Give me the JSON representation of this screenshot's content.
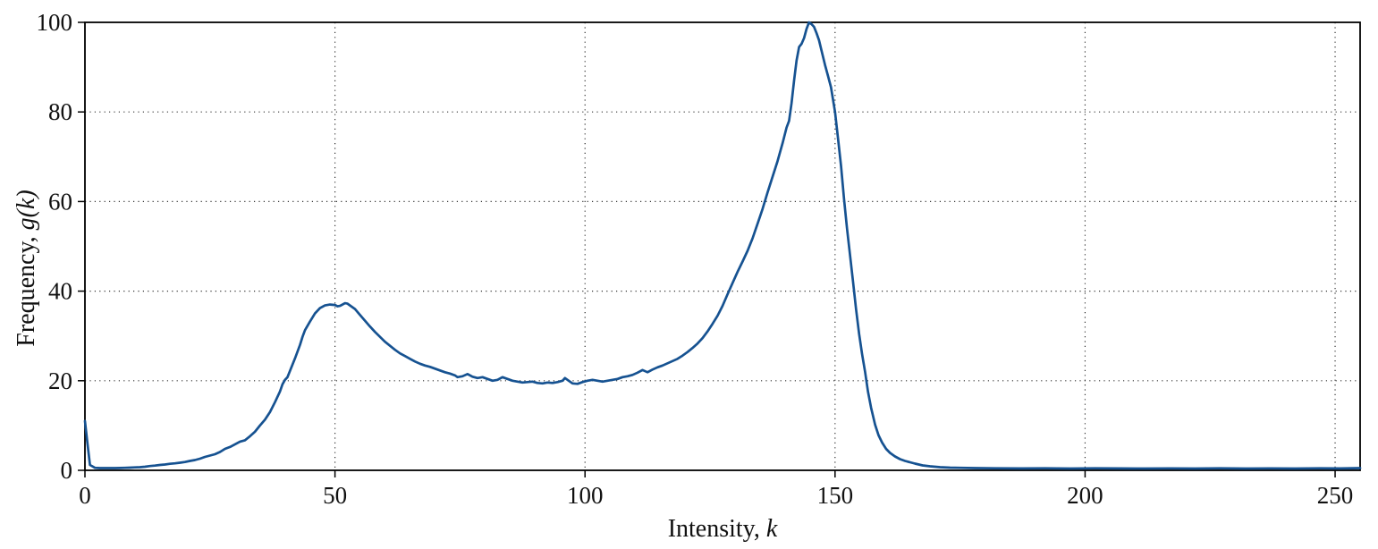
{
  "chart_data": {
    "type": "line",
    "title": "",
    "xlabel": {
      "prefix": "Intensity, ",
      "math": "k"
    },
    "ylabel": {
      "prefix": "Frequency, ",
      "math": "g(k)"
    },
    "xlim": [
      0,
      255
    ],
    "ylim": [
      0,
      100
    ],
    "xticks": [
      0,
      50,
      100,
      150,
      200,
      250
    ],
    "yticks": [
      0,
      20,
      40,
      60,
      80,
      100
    ],
    "grid": "dotted",
    "grid_color": "#333333",
    "axis_color": "#000000",
    "line_color": "#165291",
    "series": [
      {
        "name": "g(k)",
        "points": [
          [
            0,
            11
          ],
          [
            0.5,
            6
          ],
          [
            1,
            1.2
          ],
          [
            2,
            0.55
          ],
          [
            3,
            0.5
          ],
          [
            4,
            0.5
          ],
          [
            5,
            0.5
          ],
          [
            6,
            0.5
          ],
          [
            7,
            0.52
          ],
          [
            8,
            0.55
          ],
          [
            9,
            0.6
          ],
          [
            10,
            0.65
          ],
          [
            11,
            0.7
          ],
          [
            12,
            0.8
          ],
          [
            13,
            0.95
          ],
          [
            14,
            1.05
          ],
          [
            15,
            1.2
          ],
          [
            16,
            1.3
          ],
          [
            17,
            1.45
          ],
          [
            18,
            1.55
          ],
          [
            19,
            1.7
          ],
          [
            20,
            1.85
          ],
          [
            21,
            2.1
          ],
          [
            22,
            2.3
          ],
          [
            23,
            2.6
          ],
          [
            24,
            3.0
          ],
          [
            25,
            3.3
          ],
          [
            26,
            3.6
          ],
          [
            27,
            4.1
          ],
          [
            28,
            4.8
          ],
          [
            29,
            5.2
          ],
          [
            30,
            5.8
          ],
          [
            31,
            6.4
          ],
          [
            32,
            6.7
          ],
          [
            33,
            7.6
          ],
          [
            34,
            8.6
          ],
          [
            35,
            10.0
          ],
          [
            36,
            11.3
          ],
          [
            37,
            13.0
          ],
          [
            38,
            15.2
          ],
          [
            39,
            17.6
          ],
          [
            39.5,
            19.2
          ],
          [
            40,
            20.2
          ],
          [
            40.5,
            20.8
          ],
          [
            41,
            22.2
          ],
          [
            42,
            25.0
          ],
          [
            43,
            28.0
          ],
          [
            43.5,
            29.8
          ],
          [
            44,
            31.3
          ],
          [
            45,
            33.2
          ],
          [
            46,
            35.0
          ],
          [
            47,
            36.2
          ],
          [
            48,
            36.8
          ],
          [
            49,
            37.0
          ],
          [
            50,
            36.9
          ],
          [
            50.5,
            36.6
          ],
          [
            51,
            36.7
          ],
          [
            52,
            37.3
          ],
          [
            52.5,
            37.2
          ],
          [
            53,
            36.8
          ],
          [
            54,
            36.0
          ],
          [
            55,
            34.7
          ],
          [
            56,
            33.4
          ],
          [
            57,
            32.1
          ],
          [
            58,
            30.9
          ],
          [
            59,
            29.8
          ],
          [
            60,
            28.7
          ],
          [
            61,
            27.8
          ],
          [
            62,
            26.9
          ],
          [
            63,
            26.1
          ],
          [
            64,
            25.5
          ],
          [
            65,
            24.9
          ],
          [
            66,
            24.3
          ],
          [
            67,
            23.8
          ],
          [
            68,
            23.4
          ],
          [
            69,
            23.1
          ],
          [
            70,
            22.7
          ],
          [
            71,
            22.3
          ],
          [
            72,
            21.9
          ],
          [
            73,
            21.6
          ],
          [
            74,
            21.2
          ],
          [
            74.5,
            20.8
          ],
          [
            75.5,
            21.0
          ],
          [
            76.5,
            21.5
          ],
          [
            77.5,
            20.9
          ],
          [
            78.5,
            20.6
          ],
          [
            79.5,
            20.8
          ],
          [
            80.5,
            20.4
          ],
          [
            81.5,
            20.0
          ],
          [
            82.5,
            20.2
          ],
          [
            83.5,
            20.8
          ],
          [
            84.5,
            20.4
          ],
          [
            85.5,
            20.0
          ],
          [
            86.5,
            19.8
          ],
          [
            87.5,
            19.6
          ],
          [
            88.5,
            19.7
          ],
          [
            89.5,
            19.8
          ],
          [
            90.5,
            19.5
          ],
          [
            91.5,
            19.4
          ],
          [
            92.5,
            19.6
          ],
          [
            93.5,
            19.5
          ],
          [
            94.5,
            19.7
          ],
          [
            95.5,
            20.0
          ],
          [
            96,
            20.6
          ],
          [
            96.5,
            20.2
          ],
          [
            97.5,
            19.4
          ],
          [
            98.5,
            19.3
          ],
          [
            99.5,
            19.7
          ],
          [
            100.5,
            20.0
          ],
          [
            101.5,
            20.2
          ],
          [
            102.5,
            20.0
          ],
          [
            103.5,
            19.8
          ],
          [
            104.5,
            20.0
          ],
          [
            105.5,
            20.2
          ],
          [
            106.5,
            20.4
          ],
          [
            107.5,
            20.8
          ],
          [
            108.5,
            21.0
          ],
          [
            109.5,
            21.3
          ],
          [
            110.5,
            21.8
          ],
          [
            111.5,
            22.4
          ],
          [
            112.5,
            21.9
          ],
          [
            113.5,
            22.5
          ],
          [
            114.5,
            23.0
          ],
          [
            115.5,
            23.4
          ],
          [
            116.5,
            23.9
          ],
          [
            117.5,
            24.4
          ],
          [
            118.5,
            24.9
          ],
          [
            119.5,
            25.6
          ],
          [
            120.5,
            26.4
          ],
          [
            121.5,
            27.3
          ],
          [
            122.5,
            28.3
          ],
          [
            123.5,
            29.5
          ],
          [
            124.5,
            31.0
          ],
          [
            125.5,
            32.7
          ],
          [
            126.5,
            34.5
          ],
          [
            127.5,
            36.7
          ],
          [
            128.5,
            39.3
          ],
          [
            129.5,
            41.8
          ],
          [
            130.5,
            44.3
          ],
          [
            131.5,
            46.6
          ],
          [
            132.5,
            49.0
          ],
          [
            133.5,
            51.8
          ],
          [
            134.5,
            55.0
          ],
          [
            135.5,
            58.3
          ],
          [
            136.5,
            62.0
          ],
          [
            137.5,
            65.5
          ],
          [
            138.5,
            69.0
          ],
          [
            139.5,
            73.0
          ],
          [
            140.3,
            76.5
          ],
          [
            140.8,
            78.0
          ],
          [
            141.3,
            82.0
          ],
          [
            141.8,
            87.0
          ],
          [
            142.3,
            91.5
          ],
          [
            142.8,
            94.5
          ],
          [
            143.3,
            95.2
          ],
          [
            143.8,
            96.5
          ],
          [
            144.3,
            98.5
          ],
          [
            144.8,
            100
          ],
          [
            145.3,
            99.6
          ],
          [
            145.8,
            99.0
          ],
          [
            146.3,
            97.6
          ],
          [
            146.8,
            96.0
          ],
          [
            147.3,
            93.7
          ],
          [
            148,
            90.5
          ],
          [
            148.6,
            88.0
          ],
          [
            149.2,
            85.5
          ],
          [
            150,
            80.0
          ],
          [
            150.6,
            74.0
          ],
          [
            151.2,
            68.0
          ],
          [
            151.8,
            60.5
          ],
          [
            152.4,
            54.0
          ],
          [
            153,
            48.0
          ],
          [
            153.6,
            42.0
          ],
          [
            154.2,
            36.0
          ],
          [
            154.8,
            30.5
          ],
          [
            155.4,
            26.0
          ],
          [
            156,
            22.0
          ],
          [
            156.6,
            17.5
          ],
          [
            157.2,
            14.0
          ],
          [
            158,
            10.2
          ],
          [
            158.7,
            7.8
          ],
          [
            159.4,
            6.2
          ],
          [
            160.2,
            4.8
          ],
          [
            161,
            3.9
          ],
          [
            162,
            3.1
          ],
          [
            163,
            2.5
          ],
          [
            164,
            2.1
          ],
          [
            165,
            1.8
          ],
          [
            166,
            1.5
          ],
          [
            167.5,
            1.1
          ],
          [
            169,
            0.9
          ],
          [
            171,
            0.7
          ],
          [
            173,
            0.6
          ],
          [
            175,
            0.55
          ],
          [
            178,
            0.5
          ],
          [
            182,
            0.45
          ],
          [
            187,
            0.42
          ],
          [
            192,
            0.45
          ],
          [
            197,
            0.4
          ],
          [
            202,
            0.45
          ],
          [
            207,
            0.42
          ],
          [
            212,
            0.4
          ],
          [
            217,
            0.44
          ],
          [
            222,
            0.4
          ],
          [
            227,
            0.45
          ],
          [
            232,
            0.4
          ],
          [
            237,
            0.44
          ],
          [
            242,
            0.4
          ],
          [
            247,
            0.45
          ],
          [
            251,
            0.42
          ],
          [
            255,
            0.5
          ]
        ]
      }
    ]
  }
}
